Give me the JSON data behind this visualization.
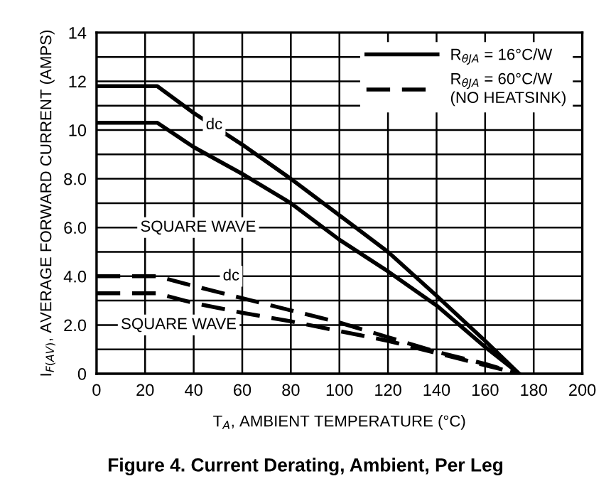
{
  "chart_data": {
    "type": "line",
    "title": "Figure 4. Current Derating, Ambient, Per Leg",
    "xlabel": "T$_{A}$, AMBIENT TEMPERATURE (°C)",
    "ylabel": "I$_{F(AV)}$, AVERAGE FORWARD CURRENT (AMPS)",
    "series": [
      {
        "name": "R$_{θJA}$ = 16°C/W",
        "color": "#000000",
        "line_style": "solid",
        "x": [
          0,
          25,
          40,
          60,
          80,
          100,
          120,
          140,
          160,
          174
        ],
        "values": [
          11.8,
          11.8,
          10.7,
          9.4,
          8.0,
          6.5,
          5.0,
          3.2,
          1.35,
          0
        ]
      },
      {
        "color": "#000000",
        "line_style": "solid",
        "x": [
          0,
          25,
          40,
          60,
          80,
          100,
          120,
          140,
          160,
          174
        ],
        "values": [
          10.3,
          10.3,
          9.3,
          8.2,
          7.0,
          5.5,
          4.2,
          2.8,
          1.1,
          0
        ]
      },
      {
        "name": "R$_{θJA}$ = 60°C/W\n(NO HEATSINK)",
        "color": "#000000",
        "line_style": "dashed",
        "x": [
          0,
          25,
          40,
          60,
          80,
          100,
          120,
          140,
          160,
          174
        ],
        "values": [
          4.0,
          4.0,
          3.6,
          3.1,
          2.6,
          2.1,
          1.5,
          0.9,
          0.4,
          0
        ]
      },
      {
        "color": "#000000",
        "line_style": "dashed",
        "x": [
          0,
          25,
          40,
          60,
          80,
          100,
          120,
          140,
          160,
          174
        ],
        "values": [
          3.3,
          3.3,
          2.9,
          2.5,
          2.15,
          1.75,
          1.35,
          0.85,
          0.35,
          0
        ]
      }
    ],
    "annotations": [
      "dc",
      "SQUARE WAVE",
      "dc",
      "SQUARE WAVE"
    ],
    "xlim": [
      0,
      200
    ],
    "xticks": [
      0,
      20,
      40,
      60,
      80,
      100,
      120,
      140,
      160,
      180,
      200
    ],
    "ylim": [
      0,
      14
    ],
    "yticks": [
      0,
      {
        "value": 1,
        "label": null
      },
      {
        "value": 2,
        "label": "2.0"
      },
      {
        "value": 3,
        "label": null
      },
      {
        "value": 4,
        "label": "4.0"
      },
      {
        "value": 5,
        "label": null
      },
      {
        "value": 6,
        "label": "6.0"
      },
      {
        "value": 7,
        "label": null
      },
      {
        "value": 8,
        "label": "8.0"
      },
      {
        "value": 9,
        "label": null
      },
      10,
      {
        "value": 11,
        "label": null
      },
      12,
      {
        "value": 13,
        "label": null
      },
      14
    ],
    "grid": true,
    "legend": "top right",
    "marker": "none"
  }
}
